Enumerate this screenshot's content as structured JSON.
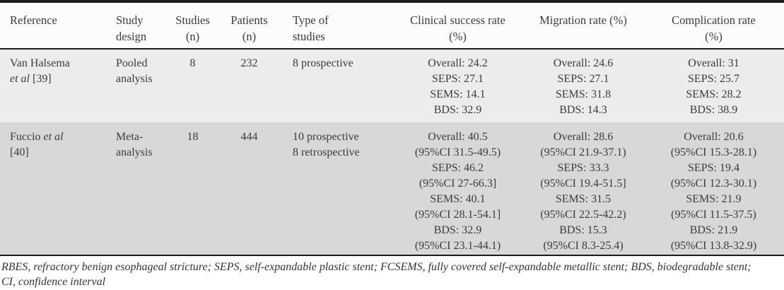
{
  "table": {
    "headers": [
      [
        "Reference"
      ],
      [
        "Study",
        "design"
      ],
      [
        "Studies",
        "(n)"
      ],
      [
        "Patients",
        "(n)"
      ],
      [
        "Type of",
        "studies"
      ],
      [
        "Clinical success rate",
        "(%)"
      ],
      [
        "Migration rate (%)"
      ],
      [
        "Complication rate",
        "(%)"
      ]
    ],
    "rows": [
      {
        "reference": [
          {
            "text": "Van Halsema\n",
            "italic": false
          },
          {
            "text": "et al",
            "italic": true
          },
          {
            "text": " [39]",
            "italic": false
          }
        ],
        "study_design": [
          "Pooled",
          "analysis"
        ],
        "studies_n": "8",
        "patients_n": "232",
        "type_of_studies": [
          "8 prospective"
        ],
        "clinical_success_rate": [
          "Overall: 24.2",
          "SEPS: 27.1",
          "SEMS: 14.1",
          "BDS: 32.9"
        ],
        "migration_rate": [
          "Overall: 24.6",
          "SEPS: 27.1",
          "SEMS: 31.8",
          "BDS: 14.3"
        ],
        "complication_rate": [
          "Overall: 31",
          "SEPS: 25.7",
          "SEMS: 28.2",
          "BDS: 38.9"
        ]
      },
      {
        "reference": [
          {
            "text": "Fuccio ",
            "italic": false
          },
          {
            "text": "et al",
            "italic": true
          },
          {
            "text": "\n[40]",
            "italic": false
          }
        ],
        "study_design": [
          "Meta-",
          "analysis"
        ],
        "studies_n": "18",
        "patients_n": "444",
        "type_of_studies": [
          "10 prospective",
          "8 retrospective"
        ],
        "clinical_success_rate": [
          "Overall: 40.5",
          "(95%CI 31.5-49.5)",
          "SEPS: 46.2",
          "(95%CI 27-66.3]",
          "SEMS: 40.1",
          "(95%CI 28.1-54.1]",
          "BDS: 32.9",
          "(95%CI 23.1-44.1)"
        ],
        "migration_rate": [
          "Overall: 28.6",
          "(95%CI 21.9-37.1)",
          "SEPS: 33.3",
          "(95%CI 19.4-51.5]",
          "SEMS: 31.5",
          "(95%CI 22.5-42.2)",
          "BDS: 15.3",
          "(95%CI 8.3-25.4)"
        ],
        "complication_rate": [
          "Overall: 20.6",
          "(95%CI 15.3-28.1)",
          "SEPS: 19.4",
          "(95%CI 12.3-30.1)",
          "SEMS: 21.9",
          "(95%CI 11.5-37.5)",
          "BDS: 21.9",
          "(95%CI 13.8-32.9)"
        ]
      }
    ]
  },
  "footnote_lines": [
    "RBES, refractory benign esophageal stricture; SEPS, self-expandable plastic stent; FCSEMS, fully covered self-expandable metallic stent; BDS, biodegradable stent;",
    "CI, confidence interval"
  ],
  "colors": {
    "rule": "#1c1c1c",
    "header_bg": "#fcfcfc",
    "row_1_bg": "#ececec",
    "row_2_bg": "#d8d8d8",
    "text": "#3b3b3b"
  }
}
